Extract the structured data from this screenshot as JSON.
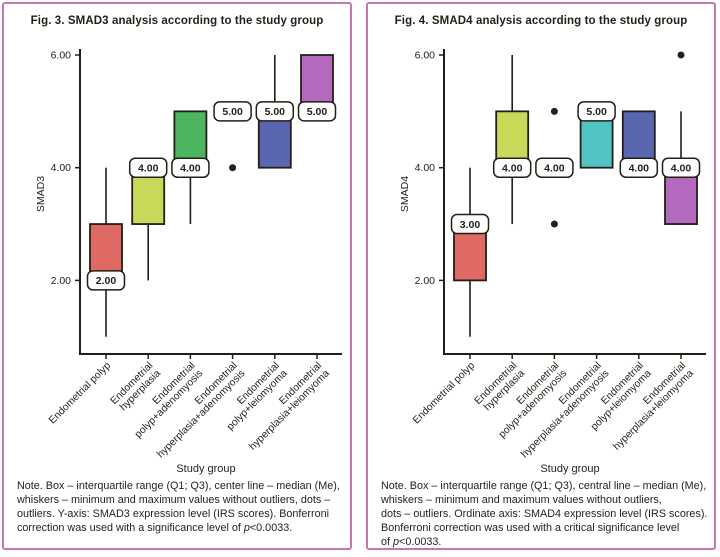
{
  "colors": {
    "panel_border": "#c478ad",
    "ink": "#241e16",
    "pill_fill": "#ffffff",
    "outlier_dot": "#27201a"
  },
  "chart_data": [
    {
      "type": "box",
      "title": "Fig. 3. SMAD3 analysis according to the study group",
      "xlabel": "Study group",
      "ylabel": "SMAD3",
      "ylim": [
        0.7,
        6.1
      ],
      "grid": false,
      "yticks": [
        {
          "value": 2,
          "label": "2.00"
        },
        {
          "value": 4,
          "label": "4.00"
        },
        {
          "value": 6,
          "label": "6.00"
        }
      ],
      "categories": [
        "Endometrial polyp",
        "Endometrial hyperplasia",
        "Endometrial polyp+adenomyosis",
        "Endometrial hyperplasia+adenomyosis",
        "Endometrial polyp+leiomyoma",
        "Endometrial hyperplasia+leiomyoma"
      ],
      "groups": [
        {
          "label_lines": [
            "Endometrial polyp"
          ],
          "color": "#df6a63",
          "q1": 2,
          "q3": 3,
          "median": 2,
          "median_label": "2.00",
          "whisker_low": 1,
          "whisker_high": 4,
          "outliers": []
        },
        {
          "label_lines": [
            "Endometrial",
            "hyperplasia"
          ],
          "color": "#c8d959",
          "q1": 3,
          "q3": 4,
          "median": 4,
          "median_label": "4.00",
          "whisker_low": 2,
          "whisker_high": null,
          "outliers": []
        },
        {
          "label_lines": [
            "Endometrial",
            "polyp+adenomyosis"
          ],
          "color": "#4db45f",
          "q1": 4,
          "q3": 5,
          "median": 4,
          "median_label": "4.00",
          "whisker_low": 3,
          "whisker_high": null,
          "outliers": []
        },
        {
          "label_lines": [
            "Endometrial",
            "hyperplasia+adenomyosis"
          ],
          "color": null,
          "q1": null,
          "q3": null,
          "median": 5,
          "median_label": "5.00",
          "whisker_low": null,
          "whisker_high": null,
          "outliers": [
            4
          ]
        },
        {
          "label_lines": [
            "Endometrial",
            "polyp+leiomyoma"
          ],
          "color": "#5b66b1",
          "q1": 4,
          "q3": 5,
          "median": 5,
          "median_label": "5.00",
          "whisker_low": null,
          "whisker_high": 6,
          "outliers": []
        },
        {
          "label_lines": [
            "Endometrial",
            "hyperplasia+leiomyoma"
          ],
          "color": "#b269be",
          "q1": 5,
          "q3": 6,
          "median": 5,
          "median_label": "5.00",
          "whisker_low": null,
          "whisker_high": null,
          "outliers": []
        }
      ],
      "note_lines": [
        [
          {
            "text": "Note. Box – interquartile range (Q1; Q3), center line – median (Me),"
          }
        ],
        [
          {
            "text": "whiskers – minimum and maximum values without outliers, dots –"
          }
        ],
        [
          {
            "text": "outliers. Y-axis: SMAD3 expression level (IRS scores). Bonferroni"
          }
        ],
        [
          {
            "text": "correction was used with a significance level of "
          },
          {
            "text": "p",
            "italic": true
          },
          {
            "text": "<0.0033."
          }
        ]
      ]
    },
    {
      "type": "box",
      "title": "Fig. 4. SMAD4 analysis according to the study group",
      "xlabel": "Study group",
      "ylabel": "SMAD4",
      "ylim": [
        0.7,
        6.1
      ],
      "grid": false,
      "yticks": [
        {
          "value": 2,
          "label": "2.00"
        },
        {
          "value": 4,
          "label": "4.00"
        },
        {
          "value": 6,
          "label": "6.00"
        }
      ],
      "categories": [
        "Endometrial polyp",
        "Endometrial hyperplasia",
        "Endometrial polyp+adenomyosis",
        "Endometrial hyperplasia+adenomyosis",
        "Endometrial polyp+leiomyoma",
        "Endometrial hyperplasia+leiomyoma"
      ],
      "groups": [
        {
          "label_lines": [
            "Endometrial polyp"
          ],
          "color": "#df6a63",
          "q1": 2,
          "q3": 3,
          "median": 3,
          "median_label": "3.00",
          "whisker_low": 1,
          "whisker_high": 4,
          "outliers": []
        },
        {
          "label_lines": [
            "Endometrial",
            "hyperplasia"
          ],
          "color": "#c8d959",
          "q1": 4,
          "q3": 5,
          "median": 4,
          "median_label": "4.00",
          "whisker_low": 3,
          "whisker_high": 6,
          "outliers": []
        },
        {
          "label_lines": [
            "Endometrial",
            "polyp+adenomyosis"
          ],
          "color": null,
          "q1": null,
          "q3": null,
          "median": 4,
          "median_label": "4.00",
          "whisker_low": null,
          "whisker_high": null,
          "outliers": [
            5,
            3
          ]
        },
        {
          "label_lines": [
            "Endometrial",
            "hyperplasia+adenomyosis"
          ],
          "color": "#4fc4c3",
          "q1": 4,
          "q3": 5,
          "median": 5,
          "median_label": "5.00",
          "whisker_low": null,
          "whisker_high": null,
          "outliers": []
        },
        {
          "label_lines": [
            "Endometrial",
            "polyp+leiomyoma"
          ],
          "color": "#5b66b1",
          "q1": 4,
          "q3": 5,
          "median": 4,
          "median_label": "4.00",
          "whisker_low": null,
          "whisker_high": null,
          "outliers": []
        },
        {
          "label_lines": [
            "Endometrial",
            "hyperplasia+leiomyoma"
          ],
          "color": "#b269be",
          "q1": 3,
          "q3": 4,
          "median": 4,
          "median_label": "4.00",
          "whisker_low": null,
          "whisker_high": 5,
          "outliers": [
            6
          ]
        }
      ],
      "note_lines": [
        [
          {
            "text": "Note. Box – interquartile range (Q1; Q3), central line – median (Me),"
          }
        ],
        [
          {
            "text": "whiskers – minimum and maximum values without outliers,"
          }
        ],
        [
          {
            "text": "dots – outliers. Ordinate axis: SMAD4 expression level (IRS scores)."
          }
        ],
        [
          {
            "text": "Bonferroni correction was used with a critical significance level"
          }
        ],
        [
          {
            "text": "of "
          },
          {
            "text": "p",
            "italic": true
          },
          {
            "text": "<0.0033."
          }
        ]
      ]
    }
  ]
}
